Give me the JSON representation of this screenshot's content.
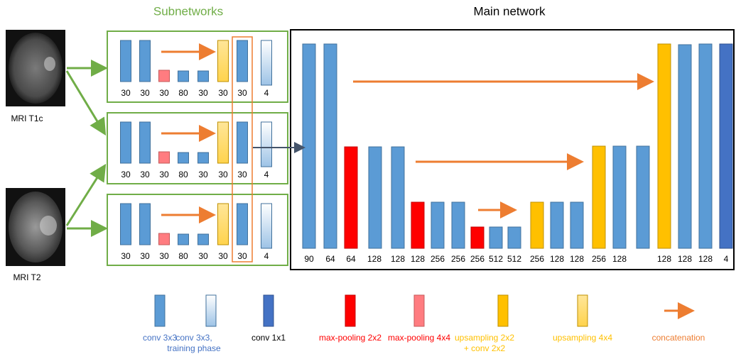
{
  "header": {
    "subnetworks": "Subnetworks",
    "main_network": "Main network"
  },
  "inputs": [
    {
      "label": "MRI T1c"
    },
    {
      "label": "MRI T2"
    }
  ],
  "subnetworks": [
    {
      "labels": [
        "30",
        "30",
        "30",
        "80",
        "30",
        "30",
        "30",
        "4"
      ]
    },
    {
      "labels": [
        "30",
        "30",
        "30",
        "80",
        "30",
        "30",
        "30",
        "4"
      ]
    },
    {
      "labels": [
        "30",
        "30",
        "30",
        "80",
        "30",
        "30",
        "30",
        "4"
      ]
    }
  ],
  "main_network": {
    "labels": [
      "90",
      "64",
      "64",
      "128",
      "128",
      "128",
      "256",
      "256",
      "256",
      "512",
      "512",
      "256",
      "128",
      "128",
      "256",
      "128",
      "128",
      "128",
      "128",
      "4"
    ]
  },
  "legend": [
    {
      "label": "conv 3x3"
    },
    {
      "label": "conv 3x3,",
      "label2": "training phase"
    },
    {
      "label": "conv 1x1"
    },
    {
      "label": "max-pooling 2x2"
    },
    {
      "label": "max-pooling 4x4"
    },
    {
      "label": "upsampling 2x2",
      "label2": "+ conv 2x2"
    },
    {
      "label": "upsampling 4x4"
    },
    {
      "label": "concatenation"
    }
  ]
}
